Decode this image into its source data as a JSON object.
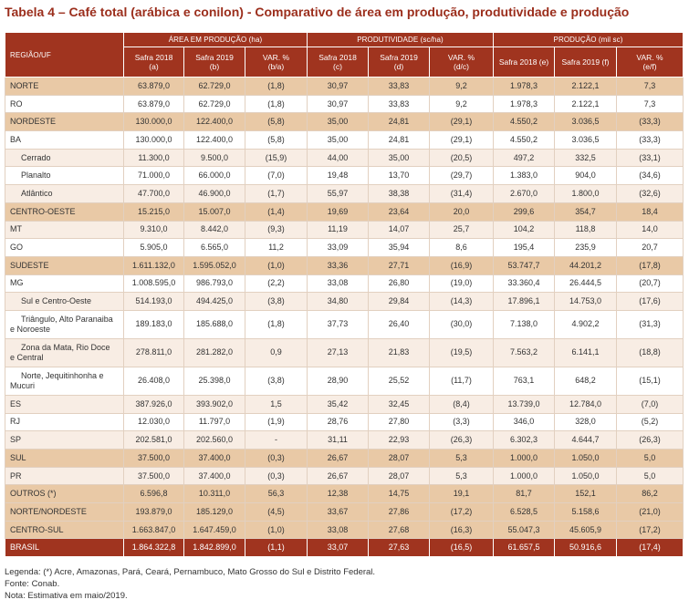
{
  "title": "Tabela 4 – Café total (arábica e conilon) - Comparativo de área em produção, produtividade e produção",
  "colors": {
    "header_fill": "#A0341F",
    "title_text": "#9B2E1C",
    "region_row_fill": "#E9C9A6"
  },
  "header": {
    "region": "REGIÃO/UF",
    "groups": [
      {
        "label": "ÁREA EM PRODUÇÃO (ha)",
        "columns": [
          "Safra 2018 (a)",
          "Safra 2019 (b)",
          "VAR. % (b/a)"
        ]
      },
      {
        "label": "PRODUTIVIDADE (sc/ha)",
        "columns": [
          "Safra 2018 (c)",
          "Safra 2019 (d)",
          "VAR. % (d/c)"
        ]
      },
      {
        "label": "PRODUÇÃO (mil sc)",
        "columns": [
          "Safra 2018 (e)",
          "Safra 2019 (f)",
          "VAR. % (e/f)"
        ]
      }
    ]
  },
  "rows": [
    {
      "label": "NORTE",
      "values": [
        "63.879,0",
        "62.729,0",
        "(1,8)",
        "30,97",
        "33,83",
        "9,2",
        "1.978,3",
        "2.122,1",
        "7,3"
      ]
    },
    {
      "label": "RO",
      "values": [
        "63.879,0",
        "62.729,0",
        "(1,8)",
        "30,97",
        "33,83",
        "9,2",
        "1.978,3",
        "2.122,1",
        "7,3"
      ]
    },
    {
      "label": "NORDESTE",
      "values": [
        "130.000,0",
        "122.400,0",
        "(5,8)",
        "35,00",
        "24,81",
        "(29,1)",
        "4.550,2",
        "3.036,5",
        "(33,3)"
      ]
    },
    {
      "label": "BA",
      "values": [
        "130.000,0",
        "122.400,0",
        "(5,8)",
        "35,00",
        "24,81",
        "(29,1)",
        "4.550,2",
        "3.036,5",
        "(33,3)"
      ]
    },
    {
      "label": "Cerrado",
      "values": [
        "11.300,0",
        "9.500,0",
        "(15,9)",
        "44,00",
        "35,00",
        "(20,5)",
        "497,2",
        "332,5",
        "(33,1)"
      ]
    },
    {
      "label": "Planalto",
      "values": [
        "71.000,0",
        "66.000,0",
        "(7,0)",
        "19,48",
        "13,70",
        "(29,7)",
        "1.383,0",
        "904,0",
        "(34,6)"
      ]
    },
    {
      "label": "Atlântico",
      "values": [
        "47.700,0",
        "46.900,0",
        "(1,7)",
        "55,97",
        "38,38",
        "(31,4)",
        "2.670,0",
        "1.800,0",
        "(32,6)"
      ]
    },
    {
      "label": "CENTRO-OESTE",
      "values": [
        "15.215,0",
        "15.007,0",
        "(1,4)",
        "19,69",
        "23,64",
        "20,0",
        "299,6",
        "354,7",
        "18,4"
      ]
    },
    {
      "label": "MT",
      "values": [
        "9.310,0",
        "8.442,0",
        "(9,3)",
        "11,19",
        "14,07",
        "25,7",
        "104,2",
        "118,8",
        "14,0"
      ]
    },
    {
      "label": "GO",
      "values": [
        "5.905,0",
        "6.565,0",
        "11,2",
        "33,09",
        "35,94",
        "8,6",
        "195,4",
        "235,9",
        "20,7"
      ]
    },
    {
      "label": "SUDESTE",
      "values": [
        "1.611.132,0",
        "1.595.052,0",
        "(1,0)",
        "33,36",
        "27,71",
        "(16,9)",
        "53.747,7",
        "44.201,2",
        "(17,8)"
      ]
    },
    {
      "label": "MG",
      "values": [
        "1.008.595,0",
        "986.793,0",
        "(2,2)",
        "33,08",
        "26,80",
        "(19,0)",
        "33.360,4",
        "26.444,5",
        "(20,7)"
      ]
    },
    {
      "label": "Sul e Centro-Oeste",
      "values": [
        "514.193,0",
        "494.425,0",
        "(3,8)",
        "34,80",
        "29,84",
        "(14,3)",
        "17.896,1",
        "14.753,0",
        "(17,6)"
      ]
    },
    {
      "label": "Triângulo, Alto Paranaiba e Noroeste",
      "values": [
        "189.183,0",
        "185.688,0",
        "(1,8)",
        "37,73",
        "26,40",
        "(30,0)",
        "7.138,0",
        "4.902,2",
        "(31,3)"
      ]
    },
    {
      "label": "Zona da Mata, Rio Doce e Central",
      "values": [
        "278.811,0",
        "281.282,0",
        "0,9",
        "27,13",
        "21,83",
        "(19,5)",
        "7.563,2",
        "6.141,1",
        "(18,8)"
      ]
    },
    {
      "label": "Norte, Jequitinhonha e Mucuri",
      "values": [
        "26.408,0",
        "25.398,0",
        "(3,8)",
        "28,90",
        "25,52",
        "(11,7)",
        "763,1",
        "648,2",
        "(15,1)"
      ]
    },
    {
      "label": "ES",
      "values": [
        "387.926,0",
        "393.902,0",
        "1,5",
        "35,42",
        "32,45",
        "(8,4)",
        "13.739,0",
        "12.784,0",
        "(7,0)"
      ]
    },
    {
      "label": "RJ",
      "values": [
        "12.030,0",
        "11.797,0",
        "(1,9)",
        "28,76",
        "27,80",
        "(3,3)",
        "346,0",
        "328,0",
        "(5,2)"
      ]
    },
    {
      "label": "SP",
      "values": [
        "202.581,0",
        "202.560,0",
        "-",
        "31,11",
        "22,93",
        "(26,3)",
        "6.302,3",
        "4.644,7",
        "(26,3)"
      ]
    },
    {
      "label": "SUL",
      "values": [
        "37.500,0",
        "37.400,0",
        "(0,3)",
        "26,67",
        "28,07",
        "5,3",
        "1.000,0",
        "1.050,0",
        "5,0"
      ]
    },
    {
      "label": "PR",
      "values": [
        "37.500,0",
        "37.400,0",
        "(0,3)",
        "26,67",
        "28,07",
        "5,3",
        "1.000,0",
        "1.050,0",
        "5,0"
      ]
    },
    {
      "label": "OUTROS (*)",
      "values": [
        "6.596,8",
        "10.311,0",
        "56,3",
        "12,38",
        "14,75",
        "19,1",
        "81,7",
        "152,1",
        "86,2"
      ]
    },
    {
      "label": "NORTE/NORDESTE",
      "values": [
        "193.879,0",
        "185.129,0",
        "(4,5)",
        "33,67",
        "27,86",
        "(17,2)",
        "6.528,5",
        "5.158,6",
        "(21,0)"
      ]
    },
    {
      "label": "CENTRO-SUL",
      "values": [
        "1.663.847,0",
        "1.647.459,0",
        "(1,0)",
        "33,08",
        "27,68",
        "(16,3)",
        "55.047,3",
        "45.605,9",
        "(17,2)"
      ]
    },
    {
      "label": "BRASIL",
      "values": [
        "1.864.322,8",
        "1.842.899,0",
        "(1,1)",
        "33,07",
        "27,63",
        "(16,5)",
        "61.657,5",
        "50.916,6",
        "(17,4)"
      ]
    }
  ],
  "notes": [
    "Legenda: (*) Acre, Amazonas, Pará, Ceará, Pernambuco, Mato Grosso do Sul e Distrito Federal.",
    "Fonte: Conab.",
    "Nota: Estimativa em maio/2019."
  ]
}
